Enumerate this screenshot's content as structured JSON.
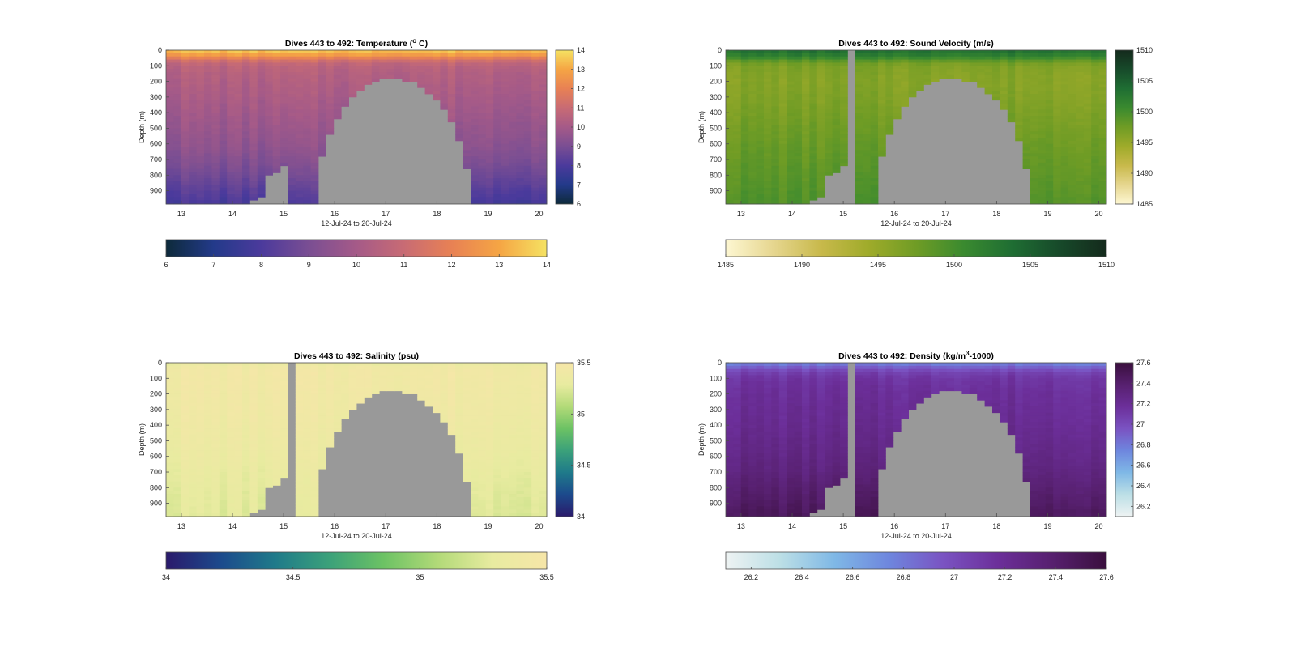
{
  "figure": {
    "background": "#ffffff",
    "nodata_color": "#999999"
  },
  "chart_data": [
    {
      "type": "heatmap",
      "variable": "temperature",
      "title": "Dives 443 to 492: Temperature (° C)",
      "title_main": "Dives 443 to 492: Temperature (",
      "title_sup": "o",
      "title_tail": " C)",
      "xlabel": "12-Jul-24 to 20-Jul-24",
      "ylabel": "Depth (m)",
      "x_ticks": [
        "13",
        "14",
        "15",
        "16",
        "17",
        "18",
        "19",
        "20"
      ],
      "x_tick_values": [
        13,
        14,
        15,
        16,
        17,
        18,
        19,
        20
      ],
      "xlim": [
        12.7,
        20.15
      ],
      "y_ticks": [
        "0",
        "100",
        "200",
        "300",
        "400",
        "500",
        "600",
        "700",
        "800",
        "900"
      ],
      "y_tick_values": [
        0,
        100,
        200,
        300,
        400,
        500,
        600,
        700,
        800,
        900
      ],
      "ylim": [
        0,
        985
      ],
      "colormap": [
        "#0d2a3a",
        "#233a8a",
        "#4b3a9c",
        "#7a4e93",
        "#a55a88",
        "#c86b74",
        "#e88154",
        "#f5a544",
        "#f5e262"
      ],
      "clim": [
        6,
        14
      ],
      "colorbar_right_ticks": [
        "6",
        "7",
        "8",
        "9",
        "10",
        "11",
        "12",
        "13",
        "14"
      ],
      "colorbar_right_tick_values": [
        6,
        7,
        8,
        9,
        10,
        11,
        12,
        13,
        14
      ],
      "colorbar_bottom_ticks": [
        "6",
        "7",
        "8",
        "9",
        "10",
        "11",
        "12",
        "13",
        "14"
      ],
      "colorbar_bottom_tick_values": [
        6,
        7,
        8,
        9,
        10,
        11,
        12,
        13,
        14
      ],
      "profile": {
        "depths": [
          0,
          20,
          40,
          60,
          80,
          100,
          150,
          200,
          300,
          400,
          500,
          600,
          700,
          800,
          900,
          985
        ],
        "values": [
          13.6,
          13.2,
          12.4,
          11.5,
          10.9,
          10.6,
          10.4,
          10.3,
          10.1,
          9.9,
          9.7,
          9.5,
          9.2,
          8.8,
          8.3,
          7.9
        ]
      },
      "gap_dives": [],
      "shallow_dives": []
    },
    {
      "type": "heatmap",
      "variable": "sound_velocity",
      "title": "Dives 443 to 492: Sound Velocity (m/s)",
      "title_main": "Dives 443 to 492: Sound Velocity (m/s)",
      "title_sup": "",
      "title_tail": "",
      "xlabel": "12-Jul-24 to 20-Jul-24",
      "ylabel": "Depth (m)",
      "x_ticks": [
        "13",
        "14",
        "15",
        "16",
        "17",
        "18",
        "19",
        "20"
      ],
      "x_tick_values": [
        13,
        14,
        15,
        16,
        17,
        18,
        19,
        20
      ],
      "xlim": [
        12.7,
        20.15
      ],
      "y_ticks": [
        "0",
        "100",
        "200",
        "300",
        "400",
        "500",
        "600",
        "700",
        "800",
        "900"
      ],
      "y_tick_values": [
        0,
        100,
        200,
        300,
        400,
        500,
        600,
        700,
        800,
        900
      ],
      "ylim": [
        0,
        985
      ],
      "colormap": [
        "#fdf7d2",
        "#e6d68f",
        "#c8b94b",
        "#9fab2a",
        "#6f9c25",
        "#3a8a2f",
        "#1f6e33",
        "#174a2a",
        "#142a1c"
      ],
      "clim": [
        1485,
        1510
      ],
      "colorbar_right_ticks": [
        "1485",
        "1490",
        "1495",
        "1500",
        "1505",
        "1510"
      ],
      "colorbar_right_tick_values": [
        1485,
        1490,
        1495,
        1500,
        1505,
        1510
      ],
      "colorbar_bottom_ticks": [
        "1485",
        "1490",
        "1495",
        "1500",
        "1505",
        "1510"
      ],
      "colorbar_bottom_tick_values": [
        1485,
        1490,
        1495,
        1500,
        1505,
        1510
      ],
      "profile": {
        "depths": [
          0,
          20,
          40,
          60,
          80,
          100,
          150,
          200,
          300,
          400,
          500,
          600,
          700,
          800,
          900,
          985
        ],
        "values": [
          1503.5,
          1503.0,
          1501.5,
          1499.5,
          1497.5,
          1496.5,
          1496.2,
          1496.0,
          1496.3,
          1496.8,
          1497.3,
          1497.8,
          1498.2,
          1498.6,
          1499.0,
          1499.4
        ]
      },
      "gap_dives": [
        16
      ],
      "shallow_dives": []
    },
    {
      "type": "heatmap",
      "variable": "salinity",
      "title": "Dives 443 to 492: Salinity (psu)",
      "title_main": "Dives 443 to 492: Salinity (psu)",
      "title_sup": "",
      "title_tail": "",
      "xlabel": "12-Jul-24 to 20-Jul-24",
      "ylabel": "Depth (m)",
      "x_ticks": [
        "13",
        "14",
        "15",
        "16",
        "17",
        "18",
        "19",
        "20"
      ],
      "x_tick_values": [
        13,
        14,
        15,
        16,
        17,
        18,
        19,
        20
      ],
      "xlim": [
        12.7,
        20.15
      ],
      "y_ticks": [
        "0",
        "100",
        "200",
        "300",
        "400",
        "500",
        "600",
        "700",
        "800",
        "900"
      ],
      "y_tick_values": [
        0,
        100,
        200,
        300,
        400,
        500,
        600,
        700,
        800,
        900
      ],
      "ylim": [
        0,
        985
      ],
      "colormap": [
        "#2a1a6b",
        "#1c4a8c",
        "#1f7a8a",
        "#3ba17a",
        "#6cc264",
        "#b2da78",
        "#e8eba0",
        "#f6e6a8"
      ],
      "clim": [
        34,
        35.5
      ],
      "colorbar_right_ticks": [
        "34",
        "34.5",
        "35",
        "35.5"
      ],
      "colorbar_right_tick_values": [
        34,
        34.5,
        35,
        35.5
      ],
      "colorbar_bottom_ticks": [
        "34",
        "34.5",
        "35",
        "35.5"
      ],
      "colorbar_bottom_tick_values": [
        34,
        34.5,
        35,
        35.5
      ],
      "profile": {
        "depths": [
          0,
          20,
          40,
          60,
          80,
          100,
          150,
          200,
          300,
          400,
          500,
          600,
          700,
          800,
          900,
          985
        ],
        "values": [
          35.3,
          35.38,
          35.42,
          35.43,
          35.43,
          35.42,
          35.42,
          35.41,
          35.4,
          35.38,
          35.36,
          35.34,
          35.31,
          35.29,
          35.27,
          35.26
        ]
      },
      "gap_dives": [
        16
      ],
      "shallow_dives": []
    },
    {
      "type": "heatmap",
      "variable": "density",
      "title": "Dives 443 to 492: Density (kg/m³-1000)",
      "title_main": "Dives 443 to 492: Density (kg/m",
      "title_sup": "3",
      "title_tail": "-1000)",
      "xlabel": "12-Jul-24 to 20-Jul-24",
      "ylabel": "Depth (m)",
      "x_ticks": [
        "13",
        "14",
        "15",
        "16",
        "17",
        "18",
        "19",
        "20"
      ],
      "x_tick_values": [
        13,
        14,
        15,
        16,
        17,
        18,
        19,
        20
      ],
      "xlim": [
        12.7,
        20.15
      ],
      "y_ticks": [
        "0",
        "100",
        "200",
        "300",
        "400",
        "500",
        "600",
        "700",
        "800",
        "900"
      ],
      "y_tick_values": [
        0,
        100,
        200,
        300,
        400,
        500,
        600,
        700,
        800,
        900
      ],
      "ylim": [
        0,
        985
      ],
      "colormap": [
        "#eef3f3",
        "#bcdfe6",
        "#7fb8e6",
        "#6e86de",
        "#7a53c2",
        "#6c2f9a",
        "#57206f",
        "#3a0f3e"
      ],
      "clim": [
        26.1,
        27.6
      ],
      "colorbar_right_ticks": [
        "26.2",
        "26.4",
        "26.6",
        "26.8",
        "27",
        "27.2",
        "27.4",
        "27.6"
      ],
      "colorbar_right_tick_values": [
        26.2,
        26.4,
        26.6,
        26.8,
        27,
        27.2,
        27.4,
        27.6
      ],
      "colorbar_bottom_ticks": [
        "26.2",
        "26.4",
        "26.6",
        "26.8",
        "27",
        "27.2",
        "27.4",
        "27.6"
      ],
      "colorbar_bottom_tick_values": [
        26.2,
        26.4,
        26.6,
        26.8,
        27,
        27.2,
        27.4,
        27.6
      ],
      "profile": {
        "depths": [
          0,
          20,
          40,
          60,
          80,
          100,
          150,
          200,
          300,
          400,
          500,
          600,
          700,
          800,
          900,
          985
        ],
        "values": [
          26.75,
          26.85,
          26.95,
          27.05,
          27.1,
          27.13,
          27.16,
          27.18,
          27.2,
          27.22,
          27.25,
          27.28,
          27.32,
          27.38,
          27.43,
          27.48
        ]
      },
      "gap_dives": [
        16
      ],
      "shallow_dives": []
    }
  ],
  "dive_coverage": {
    "n_dives": 50,
    "x_start": 12.7,
    "x_end": 20.15,
    "max_depth": [
      985,
      985,
      985,
      985,
      985,
      985,
      985,
      985,
      985,
      985,
      985,
      960,
      940,
      800,
      785,
      740,
      985,
      985,
      985,
      985,
      985,
      985,
      985,
      985,
      985,
      985,
      985,
      985,
      985,
      960,
      940,
      920,
      910,
      845,
      810,
      810,
      790,
      850,
      985,
      985,
      985,
      985,
      985,
      985,
      985,
      985,
      985,
      985,
      985,
      985
    ],
    "hole": {
      "start_day": 15.65,
      "end_day": 18.65,
      "peak_day": 17.2,
      "top_depth": 180
    }
  }
}
